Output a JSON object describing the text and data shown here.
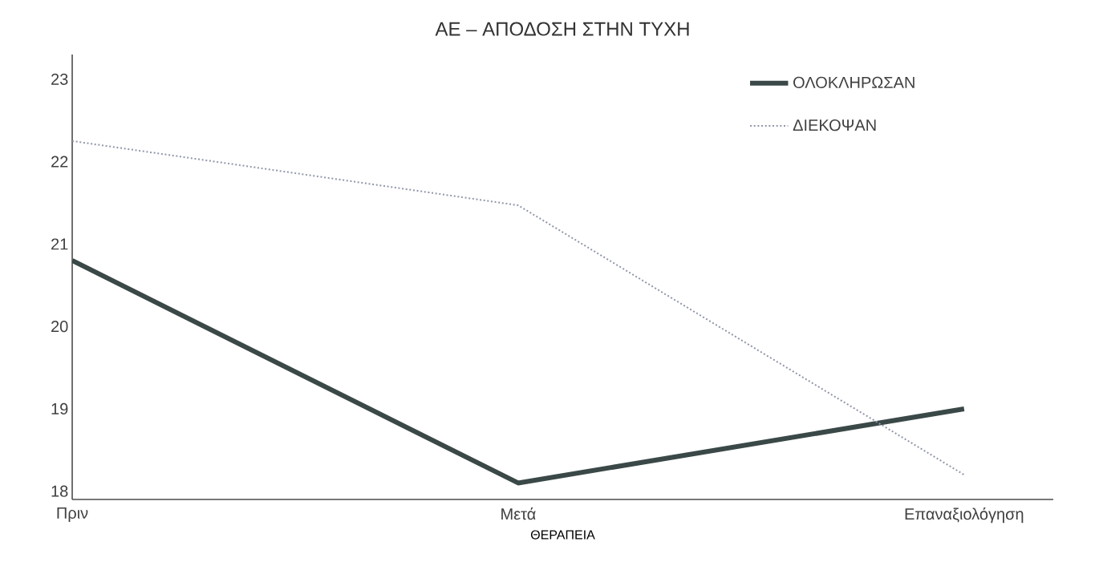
{
  "chart_data": {
    "type": "line",
    "title": "ΑΕ – ΑΠΟΔΟΣΗ ΣΤΗΝ ΤΥΧΗ",
    "xlabel": "ΘΕΡΑΠΕΙΑ",
    "categories": [
      "Πριν",
      "Μετά",
      "Επαναξιολόγηση"
    ],
    "ylim": [
      17.9,
      23.3
    ],
    "yticks": [
      18,
      19,
      20,
      21,
      22,
      23
    ],
    "legend": "top right",
    "series": [
      {
        "name": "ΟΛΟΚΛΗΡΩΣΑΝ",
        "color": "#3b4848",
        "line_style": "solid",
        "values": [
          20.8,
          18.1,
          19.0
        ]
      },
      {
        "name": "ΔΙΕΚΟΨΑΝ",
        "color": "#8f97a8",
        "line_style": "dotted",
        "values": [
          22.25,
          21.47,
          18.2
        ]
      }
    ]
  }
}
